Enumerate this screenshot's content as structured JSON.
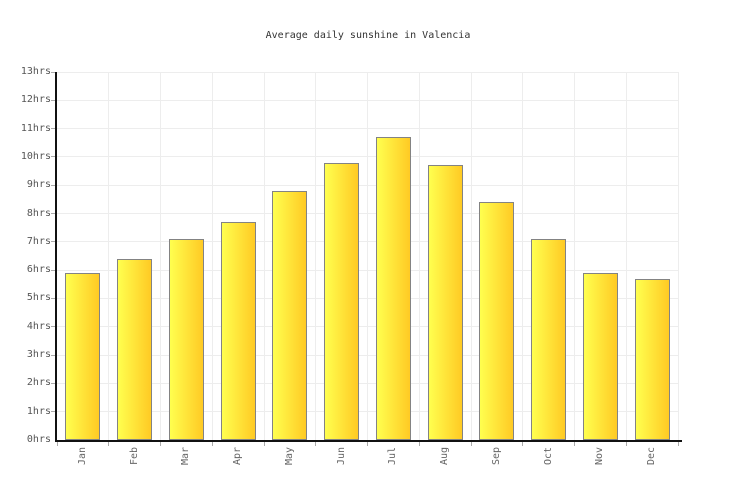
{
  "chart_data": {
    "type": "bar",
    "title": "Average daily sunshine in Valencia",
    "categories": [
      "Jan",
      "Feb",
      "Mar",
      "Apr",
      "May",
      "Jun",
      "Jul",
      "Aug",
      "Sep",
      "Oct",
      "Nov",
      "Dec"
    ],
    "values": [
      5.9,
      6.4,
      7.1,
      7.7,
      8.8,
      9.8,
      10.7,
      9.7,
      8.4,
      7.1,
      5.9,
      5.7
    ],
    "xlabel": "",
    "ylabel": "",
    "ylim": [
      0,
      13
    ],
    "ytick_step": 1,
    "ytick_suffix": "hrs",
    "grid": true,
    "legend_position": "none"
  },
  "colors": {
    "background": "#ffffff",
    "bar_gradient_left": "#ffff4f",
    "bar_gradient_right": "#ffca24",
    "bar_border": "#838383",
    "grid_line": "#ededed",
    "axis_line": "#111111",
    "tick_mark": "#aaaaaa",
    "ytick_label": "#555555",
    "xtick_label": "#666666",
    "title_text": "#333333"
  }
}
